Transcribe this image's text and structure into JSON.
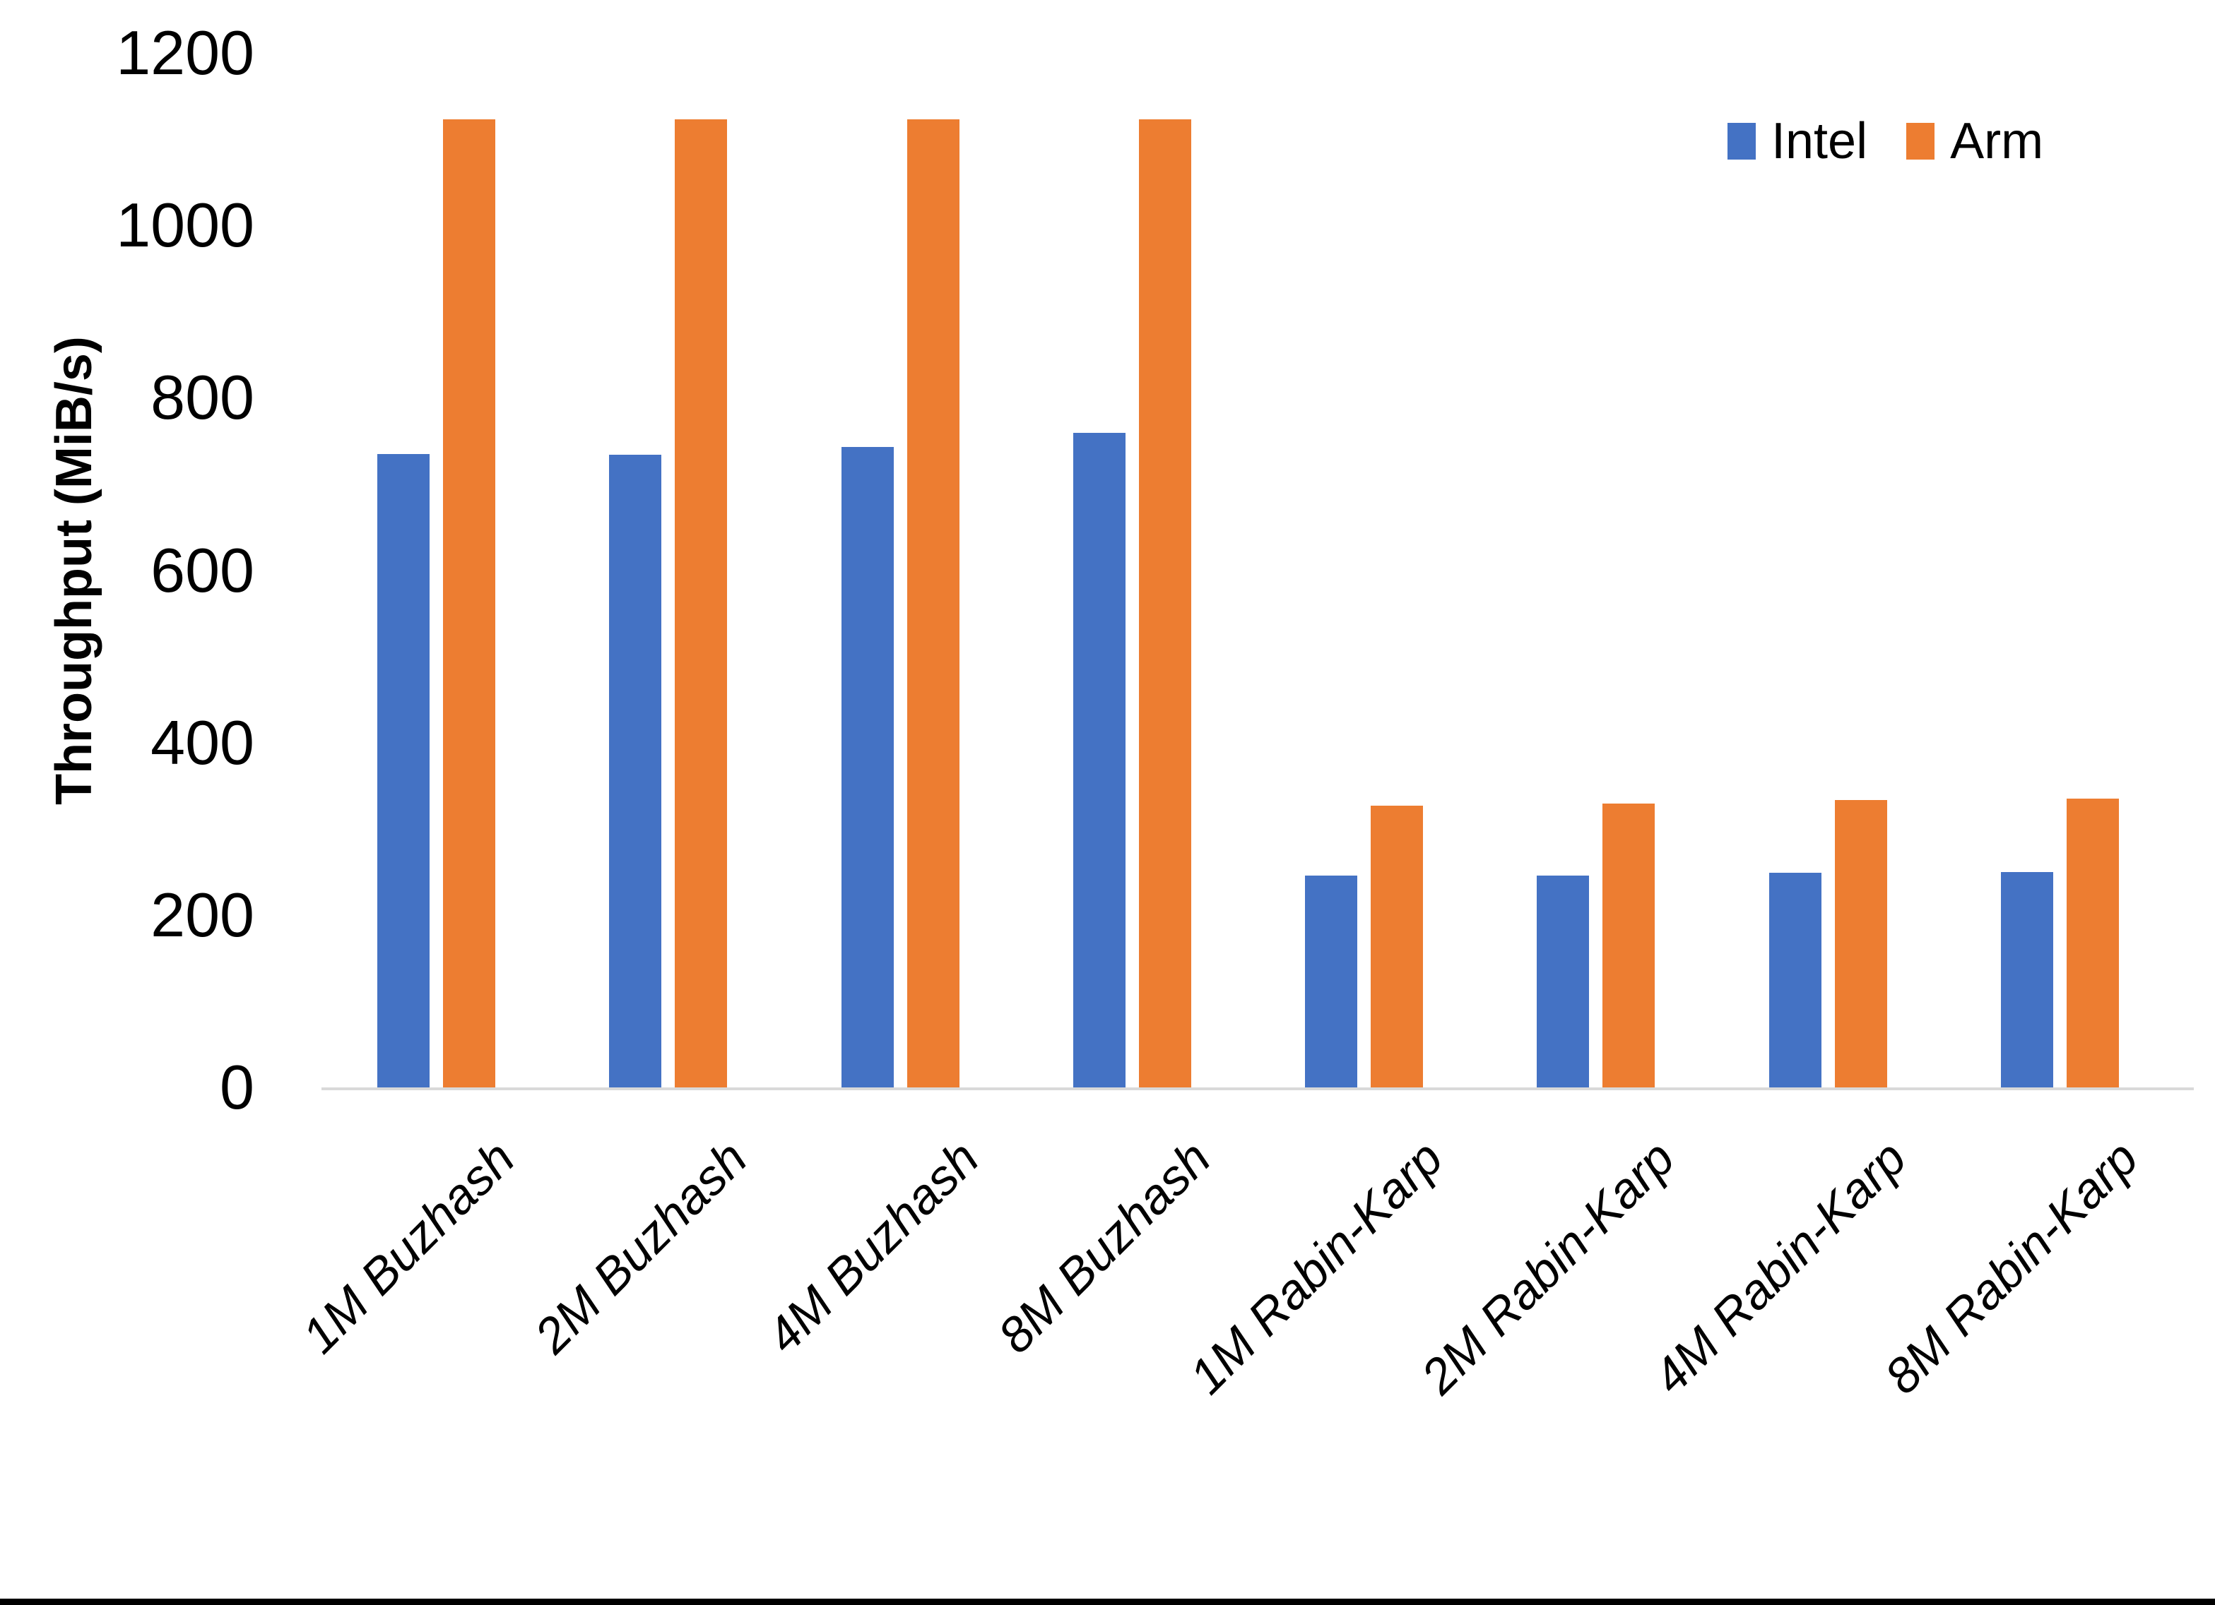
{
  "chart_data": {
    "type": "bar",
    "title": "",
    "xlabel": "",
    "ylabel": "Throughput (MiB/s)",
    "ylim": [
      0,
      1200
    ],
    "yticks": [
      0,
      200,
      400,
      600,
      800,
      1000,
      1200
    ],
    "grid": false,
    "legend_position": "top-right",
    "categories": [
      "1M Buzhash",
      "2M Buzhash",
      "4M Buzhash",
      "8M Buzhash",
      "1M Rabin-Karp",
      "2M Rabin-Karp",
      "4M Rabin-Karp",
      "8M Rabin-Karp"
    ],
    "series": [
      {
        "name": "Intel",
        "color": "#4472C4",
        "values": [
          735,
          734,
          743,
          759,
          246,
          246,
          249,
          250
        ]
      },
      {
        "name": "Arm",
        "color": "#ED7D31",
        "values": [
          1123,
          1123,
          1123,
          1123,
          327,
          329,
          333,
          335
        ]
      }
    ]
  },
  "colors": {
    "background": "#FFFFFF",
    "axis_line": "#D9D9D9",
    "text": "#000000",
    "bottom_edge": "#000000"
  }
}
